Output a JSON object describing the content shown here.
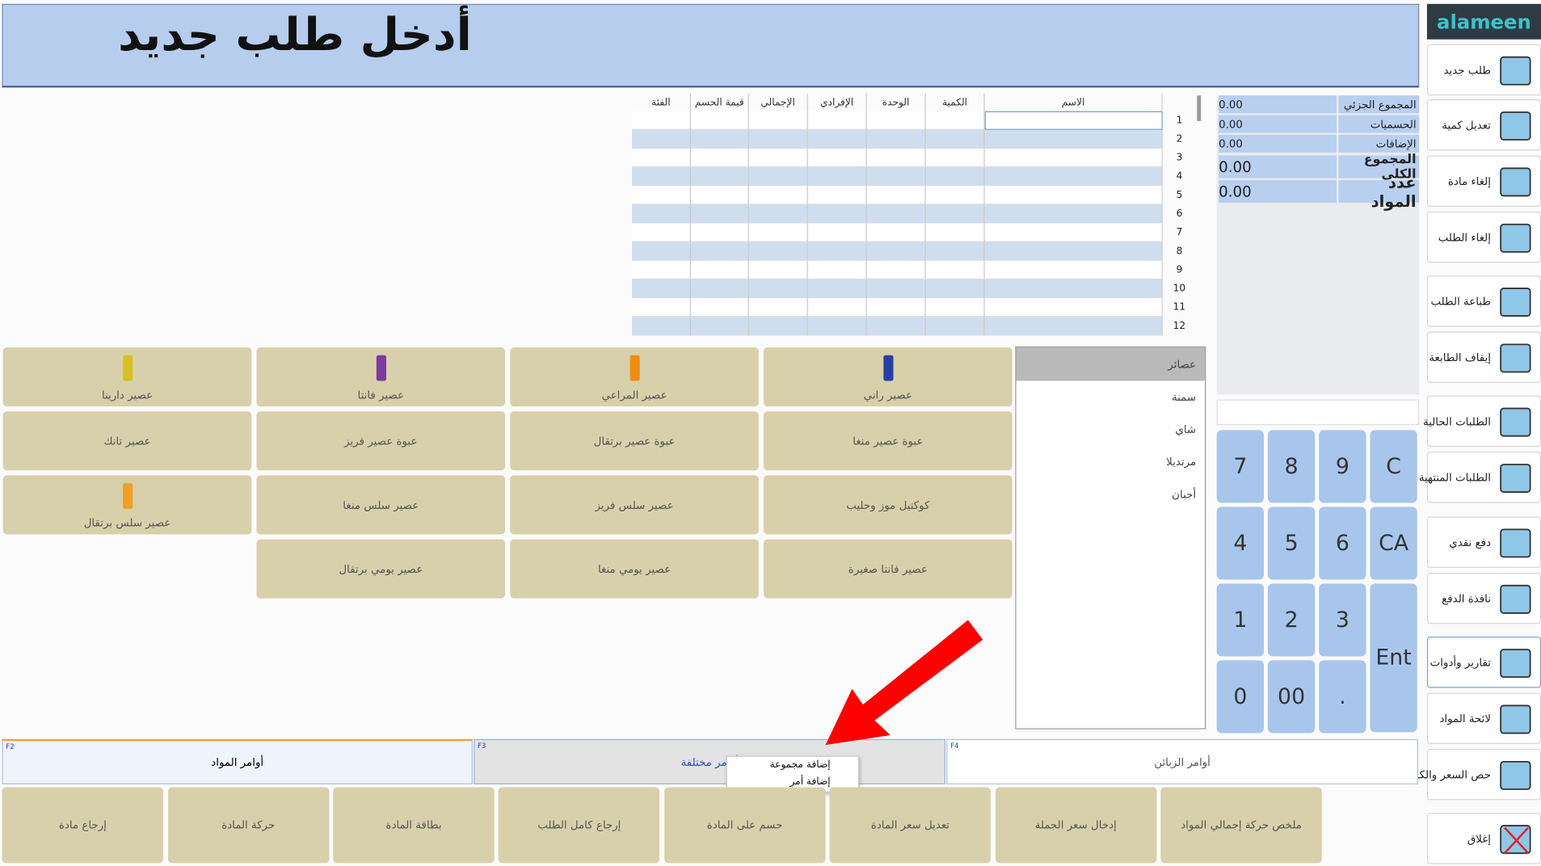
{
  "header": {
    "title": "أدخل طلب جديد"
  },
  "brand": "alameen",
  "sidebar": {
    "buttons": [
      "طلب جديد",
      "تعديل كمية",
      "إلغاء مادة",
      "إلغاء الطلب",
      "طباعة الطلب",
      "إيقاف الطابعة",
      "الطلبات الحالية",
      "الطلبات المنتهية",
      "دفع نقدي",
      "نافذة الدفع",
      "تقارير وأدوات",
      "لائحة المواد",
      "حص السعر والكم",
      "إغلاق"
    ]
  },
  "table": {
    "columns": [
      "الاسم",
      "الكمية",
      "الوحدة",
      "الإفرادي",
      "الإجمالي",
      "قيمة الحسم",
      "الفئة"
    ],
    "row_numbers": [
      1,
      2,
      3,
      4,
      5,
      6,
      7,
      8,
      9,
      10,
      11,
      12
    ]
  },
  "summary": {
    "rows": [
      {
        "label": "المجموع الجزئي",
        "value": "0.00"
      },
      {
        "label": "الحسميات",
        "value": "0.00"
      },
      {
        "label": "الإضافات",
        "value": "0.00"
      },
      {
        "label": "المجموع الكلي",
        "value": "0.00"
      },
      {
        "label": "عدد المواد",
        "value": "0.00"
      }
    ]
  },
  "categories": [
    "عصائر",
    "سمنة",
    "شاي",
    "مرتديلا",
    "أجبان"
  ],
  "products": [
    "عصير راني",
    "عصير المراعي",
    "عصير فانتا",
    "عصير دارينا",
    "عبوة عصير منغا",
    "عبوة عصير برتقال",
    "عبوة عصير فريز",
    "عصير تانك",
    "كوكتيل موز وحليب",
    "عصير سلس فريز",
    "عصير سلس منغا",
    "عصير سلس برتقال",
    "عصير فانتا صغيرة",
    "عصير يومي منغا",
    "عصير يومي برتقال"
  ],
  "keypad": [
    "7",
    "8",
    "9",
    "C",
    "4",
    "5",
    "6",
    "CA",
    "1",
    "2",
    "3",
    "Ent",
    "0",
    "00",
    "."
  ],
  "tabs": [
    {
      "key": "F2",
      "label": "أوامر المواد"
    },
    {
      "key": "F3",
      "label": "أوامر مختلفة"
    },
    {
      "key": "F4",
      "label": "أوامر الزبائن"
    }
  ],
  "context_menu": [
    "إضافة مجموعة",
    "إضافة أمر"
  ],
  "actions": [
    "ملخص حركة إجمالي المواد",
    "إدخال سعر الجملة",
    "تعديل سعر المادة",
    "حسم على المادة",
    "إرجاع كامل الطلب",
    "بطاقة المادة",
    "حركة المادة",
    "إرجاع مادة"
  ]
}
